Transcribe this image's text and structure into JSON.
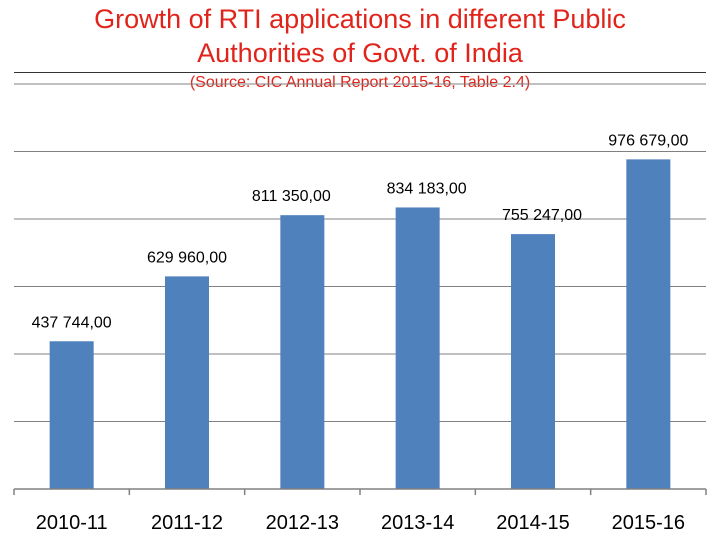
{
  "title": "Growth of RTI applications in different Public Authorities of Govt. of India",
  "title_line1": "Growth of RTI applications in different Public",
  "title_line2": "Authorities of Govt. of India",
  "subtitle": "(Source: CIC Annual Report 2015-16, Table 2.4)",
  "colors": {
    "title": "#e0241b",
    "bar": "#4f81bd",
    "grid": "#808080"
  },
  "chart_data": {
    "type": "bar",
    "title": "Growth of RTI applications in different Public Authorities of Govt. of India",
    "subtitle": "(Source: CIC Annual Report 2015-16, Table 2.4)",
    "categories": [
      "2010-11",
      "2011-12",
      "2012-13",
      "2013-14",
      "2014-15",
      "2015-16"
    ],
    "values": [
      437744,
      629960,
      811350,
      834183,
      755247,
      976679
    ],
    "data_labels": [
      "437 744,00",
      "629 960,00",
      "811 350,00",
      "834 183,00",
      "755 247,00",
      "976 679,00"
    ],
    "xlabel": "",
    "ylabel": "",
    "ylim": [
      0,
      1200000
    ],
    "grid": true,
    "legend": "none"
  }
}
